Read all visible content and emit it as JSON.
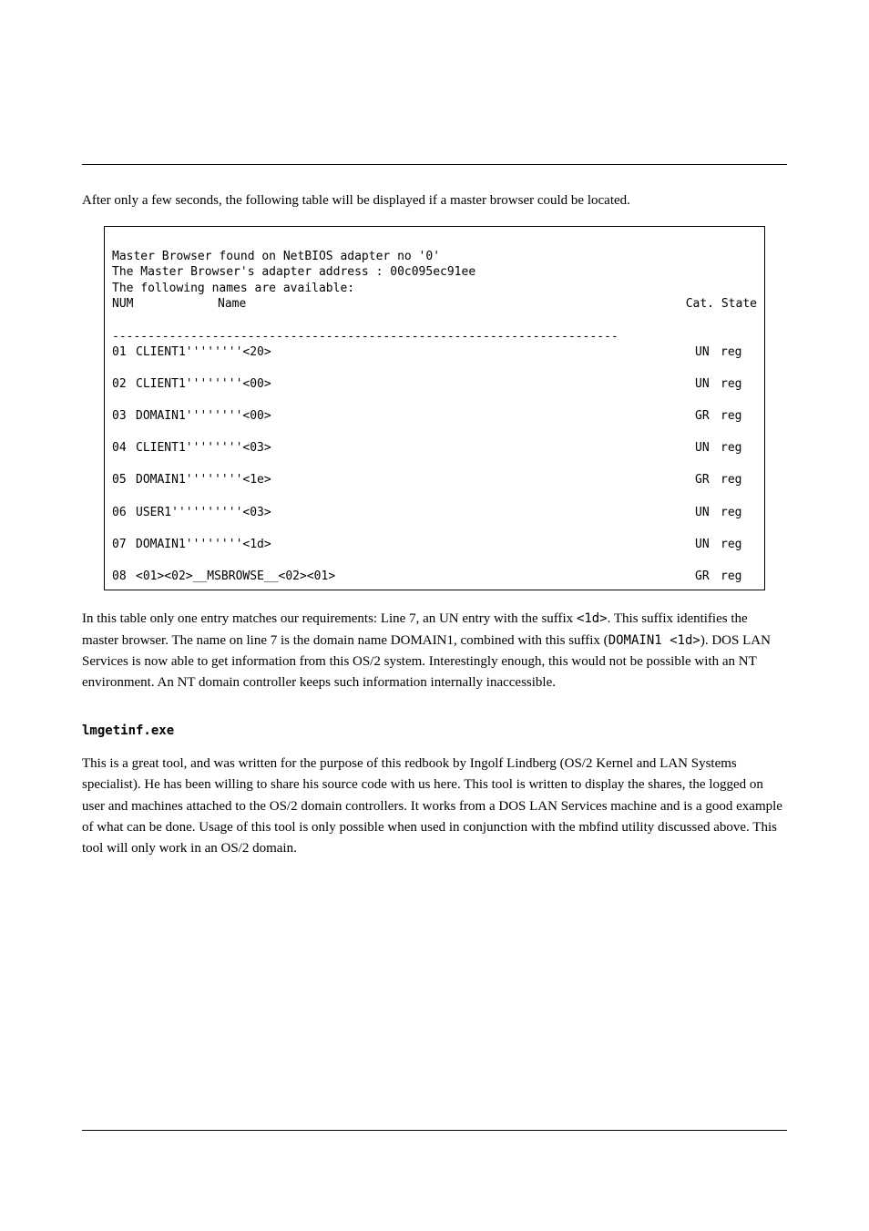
{
  "codebox": {
    "line1": "Master Browser found on NetBIOS adapter no '0'",
    "line2": "The Master Browser's adapter address : 00c095ec91ee",
    "line3": "The following names are available:",
    "header": {
      "num": "NUM",
      "spacer": "",
      "name": "Name",
      "right": "Cat. State"
    },
    "rule": "-----------------------------------------------------------------------",
    "rows": [
      {
        "num": "01",
        "name": "CLIENT1''''''''<20>",
        "cat": "UN",
        "state": "reg"
      },
      {
        "num": "02",
        "name": "CLIENT1''''''''<00>",
        "cat": "UN",
        "state": "reg"
      },
      {
        "num": "03",
        "name": "DOMAIN1''''''''<00>",
        "cat": "GR",
        "state": "reg"
      },
      {
        "num": "04",
        "name": "CLIENT1''''''''<03>",
        "cat": "UN",
        "state": "reg"
      },
      {
        "num": "05",
        "name": "DOMAIN1''''''''<1e>",
        "cat": "GR",
        "state": "reg"
      },
      {
        "num": "06",
        "name": "USER1''''''''''<03>",
        "cat": "UN",
        "state": "reg"
      },
      {
        "num": "07",
        "name": "DOMAIN1''''''''<1d>",
        "cat": "UN",
        "state": "reg"
      },
      {
        "num": "08",
        "name": "<01><02>__MSBROWSE__<02><01>",
        "cat": "GR",
        "state": "reg"
      }
    ]
  },
  "para1": {
    "pre": "In this table only one entry matches our requirements: Line 7, an UN entry with the suffix ",
    "mono1": "<1d>",
    "mid1": ". This suffix identifies the master browser. The name on line 7 is the domain name DOMAIN1, combined with this suffix (",
    "mono2": "DOMAIN1 <1d>",
    "mid2": "). DOS LAN Services is now able to get information from this OS/2 system. Interestingly enough, this would not be possible with an NT environment. An NT domain controller keeps such information internally inaccessible.",
    "tail": ""
  },
  "heading": "lmgetinf.exe",
  "para2": "This is a great tool, and was written for the purpose of this redbook by Ingolf Lindberg (OS/2 Kernel and LAN Systems specialist). He has been willing to share his source code with us here. This tool is written to display the shares, the logged on user and machines attached to the OS/2 domain controllers. It works from a DOS LAN Services machine and is a good example of what can be done. Usage of this tool is only possible when used in conjunction with the mbfind utility discussed above. This tool will only work in an OS/2 domain."
}
